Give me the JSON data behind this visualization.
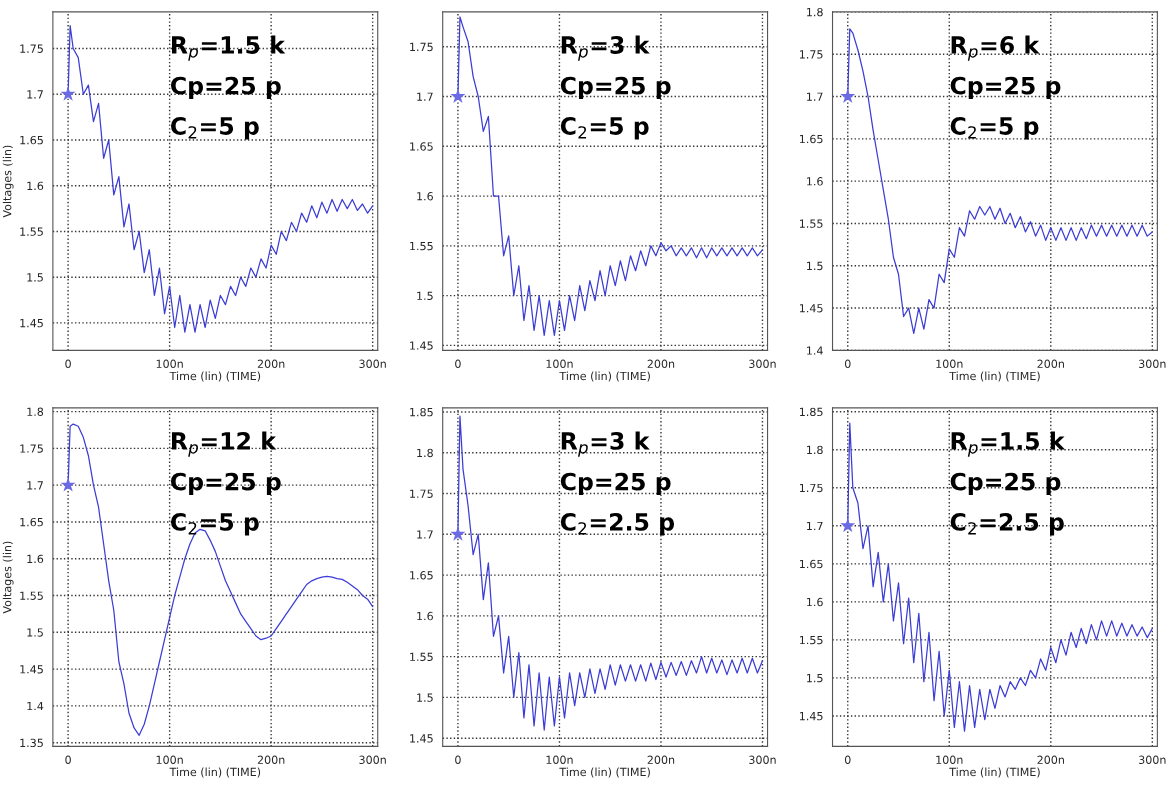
{
  "chart_data": [
    {
      "type": "line",
      "xlabel": "Time (lin) (TIME)",
      "ylabel": "Voltages (lin)",
      "x": [
        0,
        2,
        5,
        10,
        15,
        20,
        25,
        30,
        35,
        40,
        45,
        50,
        55,
        60,
        65,
        70,
        75,
        80,
        85,
        90,
        95,
        100,
        105,
        110,
        115,
        120,
        125,
        130,
        135,
        140,
        145,
        150,
        155,
        160,
        165,
        170,
        175,
        180,
        185,
        190,
        195,
        200,
        205,
        210,
        215,
        220,
        225,
        230,
        235,
        240,
        245,
        250,
        255,
        260,
        265,
        270,
        275,
        280,
        285,
        290,
        295,
        300
      ],
      "xlim": [
        -15,
        305
      ],
      "xticks": [
        {
          "value": 0,
          "label": "0"
        },
        {
          "value": 100,
          "label": "100n"
        },
        {
          "value": 200,
          "label": "200n"
        },
        {
          "value": 300,
          "label": "300n"
        }
      ],
      "ylim": [
        1.42,
        1.79
      ],
      "yticks": [
        1.45,
        1.5,
        1.55,
        1.6,
        1.65,
        1.7,
        1.75
      ],
      "grid": true,
      "legend": false,
      "annotations": [
        "R$_{p}$=1.5 k",
        "Cp=25 p",
        "C$_{2}$=5 p"
      ],
      "series": [
        {
          "type": "line",
          "color": "#3c3cd6",
          "values": [
            1.7,
            1.775,
            1.75,
            1.74,
            1.7,
            1.71,
            1.67,
            1.69,
            1.63,
            1.65,
            1.59,
            1.61,
            1.555,
            1.58,
            1.53,
            1.55,
            1.505,
            1.53,
            1.48,
            1.51,
            1.46,
            1.49,
            1.445,
            1.48,
            1.44,
            1.47,
            1.44,
            1.47,
            1.445,
            1.475,
            1.455,
            1.48,
            1.47,
            1.49,
            1.48,
            1.5,
            1.49,
            1.51,
            1.5,
            1.52,
            1.51,
            1.535,
            1.525,
            1.55,
            1.54,
            1.56,
            1.55,
            1.57,
            1.56,
            1.578,
            1.565,
            1.582,
            1.57,
            1.585,
            1.572,
            1.585,
            1.575,
            1.585,
            1.573,
            1.58,
            1.57,
            1.578
          ]
        },
        {
          "type": "scatter",
          "color": "#6a6ae6",
          "marker": "star",
          "values": [
            1.7,
            null,
            null,
            null,
            null,
            null,
            null,
            null,
            null,
            null,
            null,
            null,
            null,
            null,
            null,
            null,
            null,
            null,
            null,
            null,
            null,
            null,
            null,
            null,
            null,
            null,
            null,
            null,
            null,
            null,
            null,
            null,
            null,
            null,
            null,
            null,
            null,
            null,
            null,
            null,
            null,
            null,
            null,
            null,
            null,
            null,
            null,
            null,
            null,
            null,
            null,
            null,
            null,
            null,
            null,
            null,
            null,
            null,
            null,
            null,
            null,
            null
          ]
        }
      ]
    },
    {
      "type": "line",
      "xlabel": "Time (lin) (TIME)",
      "x": [
        0,
        2,
        5,
        10,
        15,
        20,
        25,
        30,
        35,
        40,
        45,
        50,
        55,
        60,
        65,
        70,
        75,
        80,
        85,
        90,
        95,
        100,
        105,
        110,
        115,
        120,
        125,
        130,
        135,
        140,
        145,
        150,
        155,
        160,
        165,
        170,
        175,
        180,
        185,
        190,
        195,
        200,
        205,
        210,
        215,
        220,
        225,
        230,
        235,
        240,
        245,
        250,
        255,
        260,
        265,
        270,
        275,
        280,
        285,
        290,
        295,
        300
      ],
      "xlim": [
        -15,
        305
      ],
      "xticks": [
        {
          "value": 0,
          "label": "0"
        },
        {
          "value": 100,
          "label": "100n"
        },
        {
          "value": 200,
          "label": "200n"
        },
        {
          "value": 300,
          "label": "300n"
        }
      ],
      "ylim": [
        1.445,
        1.785
      ],
      "yticks": [
        1.45,
        1.5,
        1.55,
        1.6,
        1.65,
        1.7,
        1.75
      ],
      "grid": true,
      "legend": false,
      "annotations": [
        "R$_{p}$=3 k",
        "Cp=25 p",
        "C$_{2}$=5 p"
      ],
      "series": [
        {
          "type": "line",
          "color": "#3c3cd6",
          "values": [
            1.7,
            1.78,
            1.77,
            1.755,
            1.72,
            1.7,
            1.665,
            1.68,
            1.6,
            1.6,
            1.54,
            1.56,
            1.5,
            1.53,
            1.475,
            1.51,
            1.465,
            1.5,
            1.46,
            1.495,
            1.46,
            1.495,
            1.465,
            1.5,
            1.475,
            1.51,
            1.485,
            1.515,
            1.495,
            1.525,
            1.5,
            1.53,
            1.51,
            1.535,
            1.515,
            1.54,
            1.525,
            1.545,
            1.53,
            1.55,
            1.54,
            1.553,
            1.545,
            1.55,
            1.54,
            1.548,
            1.54,
            1.548,
            1.538,
            1.548,
            1.538,
            1.548,
            1.54,
            1.548,
            1.54,
            1.548,
            1.54,
            1.548,
            1.54,
            1.548,
            1.54,
            1.546
          ]
        },
        {
          "type": "scatter",
          "color": "#6a6ae6",
          "marker": "star",
          "values": [
            1.7,
            null,
            null,
            null,
            null,
            null,
            null,
            null,
            null,
            null,
            null,
            null,
            null,
            null,
            null,
            null,
            null,
            null,
            null,
            null,
            null,
            null,
            null,
            null,
            null,
            null,
            null,
            null,
            null,
            null,
            null,
            null,
            null,
            null,
            null,
            null,
            null,
            null,
            null,
            null,
            null,
            null,
            null,
            null,
            null,
            null,
            null,
            null,
            null,
            null,
            null,
            null,
            null,
            null,
            null,
            null,
            null,
            null,
            null,
            null,
            null,
            null
          ]
        }
      ]
    },
    {
      "type": "line",
      "xlabel": "Time (lin) (TIME)",
      "x": [
        0,
        2,
        5,
        10,
        15,
        20,
        25,
        30,
        35,
        40,
        45,
        50,
        55,
        60,
        65,
        70,
        75,
        80,
        85,
        90,
        95,
        100,
        105,
        110,
        115,
        120,
        125,
        130,
        135,
        140,
        145,
        150,
        155,
        160,
        165,
        170,
        175,
        180,
        185,
        190,
        195,
        200,
        205,
        210,
        215,
        220,
        225,
        230,
        235,
        240,
        245,
        250,
        255,
        260,
        265,
        270,
        275,
        280,
        285,
        290,
        295,
        300
      ],
      "xlim": [
        -15,
        305
      ],
      "xticks": [
        {
          "value": 0,
          "label": "0"
        },
        {
          "value": 100,
          "label": "100n"
        },
        {
          "value": 200,
          "label": "200n"
        },
        {
          "value": 300,
          "label": "300n"
        }
      ],
      "ylim": [
        1.4,
        1.8
      ],
      "yticks": [
        1.4,
        1.45,
        1.5,
        1.55,
        1.6,
        1.65,
        1.7,
        1.75,
        1.8
      ],
      "grid": true,
      "legend": false,
      "annotations": [
        "R$_{p}$=6 k",
        "Cp=25 p",
        "C$_{2}$=5 p"
      ],
      "series": [
        {
          "type": "line",
          "color": "#3c3cd6",
          "values": [
            1.7,
            1.78,
            1.775,
            1.755,
            1.73,
            1.7,
            1.66,
            1.625,
            1.59,
            1.555,
            1.51,
            1.49,
            1.44,
            1.45,
            1.42,
            1.45,
            1.425,
            1.46,
            1.45,
            1.49,
            1.48,
            1.52,
            1.51,
            1.545,
            1.535,
            1.565,
            1.555,
            1.57,
            1.56,
            1.57,
            1.555,
            1.568,
            1.55,
            1.562,
            1.545,
            1.558,
            1.54,
            1.552,
            1.535,
            1.548,
            1.53,
            1.545,
            1.53,
            1.545,
            1.53,
            1.545,
            1.53,
            1.545,
            1.532,
            1.548,
            1.535,
            1.548,
            1.535,
            1.548,
            1.535,
            1.548,
            1.535,
            1.548,
            1.535,
            1.548,
            1.535,
            1.54
          ]
        },
        {
          "type": "scatter",
          "color": "#6a6ae6",
          "marker": "star",
          "values": [
            1.7,
            null,
            null,
            null,
            null,
            null,
            null,
            null,
            null,
            null,
            null,
            null,
            null,
            null,
            null,
            null,
            null,
            null,
            null,
            null,
            null,
            null,
            null,
            null,
            null,
            null,
            null,
            null,
            null,
            null,
            null,
            null,
            null,
            null,
            null,
            null,
            null,
            null,
            null,
            null,
            null,
            null,
            null,
            null,
            null,
            null,
            null,
            null,
            null,
            null,
            null,
            null,
            null,
            null,
            null,
            null,
            null,
            null,
            null,
            null,
            null,
            null
          ]
        }
      ]
    },
    {
      "type": "line",
      "xlabel": "Time (lin) (TIME)",
      "ylabel": "Voltages (lin)",
      "x": [
        0,
        2,
        5,
        10,
        15,
        20,
        25,
        30,
        35,
        40,
        45,
        50,
        55,
        60,
        65,
        70,
        75,
        80,
        85,
        90,
        95,
        100,
        105,
        110,
        115,
        120,
        125,
        130,
        135,
        140,
        145,
        150,
        155,
        160,
        165,
        170,
        175,
        180,
        185,
        190,
        195,
        200,
        205,
        210,
        215,
        220,
        225,
        230,
        235,
        240,
        245,
        250,
        255,
        260,
        265,
        270,
        275,
        280,
        285,
        290,
        295,
        300
      ],
      "xlim": [
        -15,
        305
      ],
      "xticks": [
        {
          "value": 0,
          "label": "0"
        },
        {
          "value": 100,
          "label": "100n"
        },
        {
          "value": 200,
          "label": "200n"
        },
        {
          "value": 300,
          "label": "300n"
        }
      ],
      "ylim": [
        1.345,
        1.805
      ],
      "yticks": [
        1.35,
        1.4,
        1.45,
        1.5,
        1.55,
        1.6,
        1.65,
        1.7,
        1.75,
        1.8
      ],
      "grid": true,
      "legend": false,
      "annotations": [
        "R$_{p}$=12 k",
        "Cp=25 p",
        "C$_{2}$=5 p"
      ],
      "series": [
        {
          "type": "line",
          "color": "#3c3cd6",
          "values": [
            1.7,
            1.78,
            1.783,
            1.78,
            1.765,
            1.74,
            1.7,
            1.67,
            1.62,
            1.57,
            1.53,
            1.46,
            1.43,
            1.39,
            1.37,
            1.36,
            1.375,
            1.4,
            1.43,
            1.46,
            1.49,
            1.52,
            1.55,
            1.575,
            1.6,
            1.62,
            1.635,
            1.64,
            1.638,
            1.625,
            1.61,
            1.59,
            1.57,
            1.555,
            1.54,
            1.525,
            1.515,
            1.505,
            1.495,
            1.49,
            1.492,
            1.495,
            1.505,
            1.515,
            1.525,
            1.535,
            1.545,
            1.555,
            1.565,
            1.57,
            1.573,
            1.575,
            1.576,
            1.575,
            1.573,
            1.572,
            1.568,
            1.563,
            1.558,
            1.55,
            1.545,
            1.535
          ]
        },
        {
          "type": "scatter",
          "color": "#6a6ae6",
          "marker": "star",
          "values": [
            1.7,
            null,
            null,
            null,
            null,
            null,
            null,
            null,
            null,
            null,
            null,
            null,
            null,
            null,
            null,
            null,
            null,
            null,
            null,
            null,
            null,
            null,
            null,
            null,
            null,
            null,
            null,
            null,
            null,
            null,
            null,
            null,
            null,
            null,
            null,
            null,
            null,
            null,
            null,
            null,
            null,
            null,
            null,
            null,
            null,
            null,
            null,
            null,
            null,
            null,
            null,
            null,
            null,
            null,
            null,
            null,
            null,
            null,
            null,
            null,
            null,
            null
          ]
        }
      ]
    },
    {
      "type": "line",
      "xlabel": "Time (lin) (TIME)",
      "x": [
        0,
        2,
        5,
        10,
        15,
        20,
        25,
        30,
        35,
        40,
        45,
        50,
        55,
        60,
        65,
        70,
        75,
        80,
        85,
        90,
        95,
        100,
        105,
        110,
        115,
        120,
        125,
        130,
        135,
        140,
        145,
        150,
        155,
        160,
        165,
        170,
        175,
        180,
        185,
        190,
        195,
        200,
        205,
        210,
        215,
        220,
        225,
        230,
        235,
        240,
        245,
        250,
        255,
        260,
        265,
        270,
        275,
        280,
        285,
        290,
        295,
        300
      ],
      "xlim": [
        -15,
        305
      ],
      "xticks": [
        {
          "value": 0,
          "label": "0"
        },
        {
          "value": 100,
          "label": "100n"
        },
        {
          "value": 200,
          "label": "200n"
        },
        {
          "value": 300,
          "label": "300n"
        }
      ],
      "ylim": [
        1.44,
        1.855
      ],
      "yticks": [
        1.45,
        1.5,
        1.55,
        1.6,
        1.65,
        1.7,
        1.75,
        1.8,
        1.85
      ],
      "grid": true,
      "legend": false,
      "annotations": [
        "R$_{p}$=3 k",
        "Cp=25 p",
        "C$_{2}$=2.5 p"
      ],
      "series": [
        {
          "type": "line",
          "color": "#3c3cd6",
          "values": [
            1.7,
            1.845,
            1.78,
            1.735,
            1.675,
            1.7,
            1.62,
            1.665,
            1.575,
            1.6,
            1.53,
            1.575,
            1.5,
            1.555,
            1.475,
            1.54,
            1.465,
            1.53,
            1.46,
            1.525,
            1.465,
            1.525,
            1.475,
            1.53,
            1.49,
            1.53,
            1.5,
            1.535,
            1.505,
            1.535,
            1.51,
            1.54,
            1.515,
            1.54,
            1.52,
            1.54,
            1.52,
            1.54,
            1.52,
            1.542,
            1.522,
            1.543,
            1.525,
            1.543,
            1.527,
            1.544,
            1.527,
            1.545,
            1.53,
            1.55,
            1.53,
            1.548,
            1.53,
            1.546,
            1.528,
            1.546,
            1.53,
            1.548,
            1.53,
            1.548,
            1.53,
            1.545
          ]
        },
        {
          "type": "scatter",
          "color": "#6a6ae6",
          "marker": "star",
          "values": [
            1.7,
            null,
            null,
            null,
            null,
            null,
            null,
            null,
            null,
            null,
            null,
            null,
            null,
            null,
            null,
            null,
            null,
            null,
            null,
            null,
            null,
            null,
            null,
            null,
            null,
            null,
            null,
            null,
            null,
            null,
            null,
            null,
            null,
            null,
            null,
            null,
            null,
            null,
            null,
            null,
            null,
            null,
            null,
            null,
            null,
            null,
            null,
            null,
            null,
            null,
            null,
            null,
            null,
            null,
            null,
            null,
            null,
            null,
            null,
            null,
            null,
            null
          ]
        }
      ]
    },
    {
      "type": "line",
      "xlabel": "Time (lin) (TIME)",
      "x": [
        0,
        2,
        5,
        10,
        15,
        20,
        25,
        30,
        35,
        40,
        45,
        50,
        55,
        60,
        65,
        70,
        75,
        80,
        85,
        90,
        95,
        100,
        105,
        110,
        115,
        120,
        125,
        130,
        135,
        140,
        145,
        150,
        155,
        160,
        165,
        170,
        175,
        180,
        185,
        190,
        195,
        200,
        205,
        210,
        215,
        220,
        225,
        230,
        235,
        240,
        245,
        250,
        255,
        260,
        265,
        270,
        275,
        280,
        285,
        290,
        295,
        300
      ],
      "xlim": [
        -15,
        305
      ],
      "xticks": [
        {
          "value": 0,
          "label": "0"
        },
        {
          "value": 100,
          "label": "100n"
        },
        {
          "value": 200,
          "label": "200n"
        },
        {
          "value": 300,
          "label": "300n"
        }
      ],
      "ylim": [
        1.41,
        1.855
      ],
      "yticks": [
        1.45,
        1.5,
        1.55,
        1.6,
        1.65,
        1.7,
        1.75,
        1.8,
        1.85
      ],
      "grid": true,
      "legend": false,
      "annotations": [
        "R$_{p}$=1.5 k",
        "Cp=25 p",
        "C$_{2}$=2.5 p"
      ],
      "series": [
        {
          "type": "line",
          "color": "#3c3cd6",
          "values": [
            1.7,
            1.835,
            1.75,
            1.73,
            1.67,
            1.7,
            1.62,
            1.665,
            1.6,
            1.65,
            1.575,
            1.625,
            1.545,
            1.605,
            1.52,
            1.585,
            1.495,
            1.56,
            1.47,
            1.535,
            1.45,
            1.51,
            1.435,
            1.495,
            1.43,
            1.49,
            1.435,
            1.485,
            1.445,
            1.485,
            1.46,
            1.49,
            1.475,
            1.495,
            1.485,
            1.5,
            1.49,
            1.51,
            1.5,
            1.525,
            1.51,
            1.54,
            1.52,
            1.55,
            1.53,
            1.56,
            1.54,
            1.565,
            1.545,
            1.57,
            1.55,
            1.575,
            1.555,
            1.575,
            1.555,
            1.572,
            1.555,
            1.57,
            1.555,
            1.567,
            1.553,
            1.565
          ]
        },
        {
          "type": "scatter",
          "color": "#6a6ae6",
          "marker": "star",
          "values": [
            1.7,
            null,
            null,
            null,
            null,
            null,
            null,
            null,
            null,
            null,
            null,
            null,
            null,
            null,
            null,
            null,
            null,
            null,
            null,
            null,
            null,
            null,
            null,
            null,
            null,
            null,
            null,
            null,
            null,
            null,
            null,
            null,
            null,
            null,
            null,
            null,
            null,
            null,
            null,
            null,
            null,
            null,
            null,
            null,
            null,
            null,
            null,
            null,
            null,
            null,
            null,
            null,
            null,
            null,
            null,
            null,
            null,
            null,
            null,
            null,
            null,
            null
          ]
        }
      ]
    }
  ]
}
